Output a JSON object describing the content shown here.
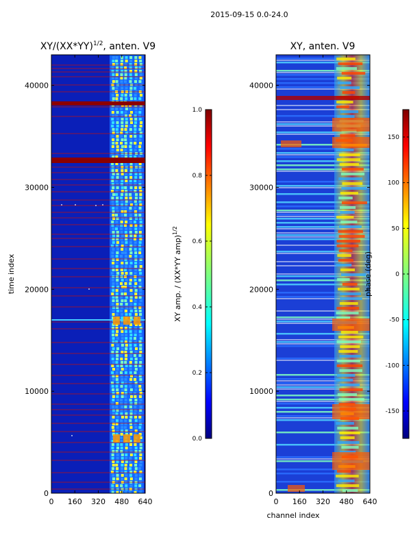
{
  "figure_title": "2015-09-15 0.0-24.0",
  "chart_data": [
    {
      "type": "heatmap",
      "title": "XY/(XX*YY)^1/2, anten. V9",
      "title_main": "XY/(XX*YY)",
      "title_sup": "1/2",
      "title_tail": ", anten. V9",
      "xlabel": "",
      "ylabel": "time index",
      "xlim": [
        0,
        640
      ],
      "ylim": [
        0,
        43000
      ],
      "x_ticks": [
        0,
        160,
        320,
        480,
        640
      ],
      "y_ticks": [
        0,
        10000,
        20000,
        30000,
        40000
      ],
      "colorbar": {
        "label_main": "XY amp. / (XX*YY amp)",
        "label_sup": "1/2",
        "range": [
          0.0,
          1.0
        ],
        "ticks": [
          "0.0",
          "0.2",
          "0.4",
          "0.6",
          "0.8",
          "1.0"
        ]
      }
    },
    {
      "type": "heatmap",
      "title": "XY, anten. V9",
      "xlabel": "channel index",
      "ylabel": "",
      "xlim": [
        0,
        640
      ],
      "ylim": [
        0,
        43000
      ],
      "x_ticks": [
        0,
        160,
        320,
        480,
        640
      ],
      "y_ticks": [
        0,
        10000,
        20000,
        30000,
        40000
      ],
      "colorbar": {
        "label": "phase (deg)",
        "range": [
          -180,
          180
        ],
        "ticks": [
          "-150",
          "-100",
          "-50",
          "0",
          "50",
          "100",
          "150"
        ]
      }
    }
  ]
}
